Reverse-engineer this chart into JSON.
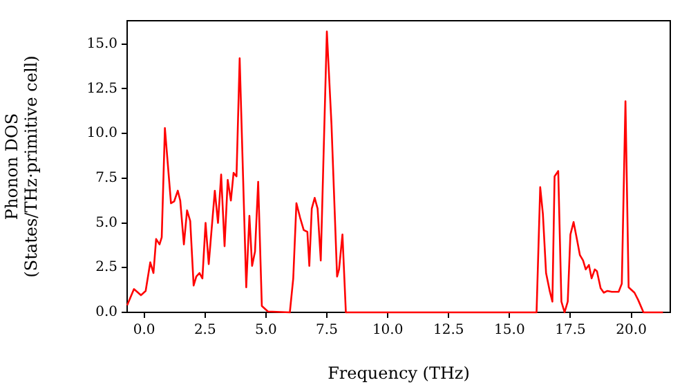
{
  "chart_data": {
    "type": "line",
    "xlabel": "Frequency (THz)",
    "ylabel": "Phonon DOS\n(States/THz·primitive cell)",
    "xlim": [
      -0.7,
      21.6
    ],
    "ylim": [
      0,
      16.3
    ],
    "xticks": [
      {
        "value": 0,
        "label": "0.0"
      },
      {
        "value": 2.5,
        "label": "2.5"
      },
      {
        "value": 5,
        "label": "5.0"
      },
      {
        "value": 7.5,
        "label": "7.5"
      },
      {
        "value": 10,
        "label": "10.0"
      },
      {
        "value": 12.5,
        "label": "12.5"
      },
      {
        "value": 15,
        "label": "15.0"
      },
      {
        "value": 17.5,
        "label": "17.5"
      },
      {
        "value": 20,
        "label": "20.0"
      }
    ],
    "yticks": [
      {
        "value": 0,
        "label": "0.0"
      },
      {
        "value": 2.5,
        "label": "2.5"
      },
      {
        "value": 5,
        "label": "5.0"
      },
      {
        "value": 7.5,
        "label": "7.5"
      },
      {
        "value": 10,
        "label": "10.0"
      },
      {
        "value": 12.5,
        "label": "12.5"
      },
      {
        "value": 15,
        "label": "15.0"
      }
    ],
    "grid": false,
    "legend": false,
    "marker": "none",
    "line_style": "solid",
    "x": [
      -0.7,
      -0.42,
      -0.13,
      0.06,
      0.25,
      0.38,
      0.49,
      0.63,
      0.72,
      0.85,
      1.1,
      1.23,
      1.38,
      1.48,
      1.63,
      1.76,
      1.89,
      2.03,
      2.14,
      2.27,
      2.39,
      2.52,
      2.65,
      2.9,
      3.03,
      3.16,
      3.3,
      3.43,
      3.56,
      3.67,
      3.79,
      3.92,
      4.19,
      4.32,
      4.43,
      4.55,
      4.68,
      4.83,
      5.08,
      5.98,
      6.12,
      6.25,
      6.4,
      6.55,
      6.7,
      6.78,
      6.88,
      7.0,
      7.12,
      7.25,
      7.5,
      7.69,
      7.92,
      8.0,
      8.14,
      8.28,
      16.11,
      16.26,
      16.37,
      16.5,
      16.65,
      16.76,
      16.85,
      17.0,
      17.13,
      17.26,
      17.39,
      17.5,
      17.63,
      17.78,
      17.89,
      18.02,
      18.13,
      18.26,
      18.37,
      18.5,
      18.59,
      18.74,
      18.87,
      19.02,
      19.2,
      19.48,
      19.61,
      19.76,
      19.89,
      20.13,
      20.28,
      20.5,
      21.3
    ],
    "series": [
      {
        "color": "#ff0000",
        "values": [
          0.4,
          1.3,
          0.96,
          1.2,
          2.8,
          2.2,
          4.1,
          3.8,
          4.2,
          10.3,
          6.1,
          6.2,
          6.8,
          6.25,
          3.8,
          5.7,
          5.1,
          1.5,
          2.0,
          2.2,
          1.9,
          5.0,
          2.7,
          6.8,
          5.0,
          7.7,
          3.7,
          7.4,
          6.25,
          7.8,
          7.6,
          14.2,
          1.4,
          5.4,
          2.6,
          3.4,
          7.3,
          0.36,
          0.05,
          0,
          1.9,
          6.1,
          5.3,
          4.6,
          4.5,
          2.6,
          5.8,
          6.4,
          5.8,
          2.9,
          15.7,
          10.5,
          2.0,
          2.4,
          4.35,
          0,
          0,
          7.0,
          5.5,
          2.2,
          1.2,
          0.6,
          7.6,
          7.9,
          0.6,
          0,
          0.6,
          4.35,
          5.05,
          4.0,
          3.2,
          2.9,
          2.4,
          2.65,
          1.9,
          2.4,
          2.3,
          1.35,
          1.1,
          1.2,
          1.15,
          1.15,
          1.6,
          11.8,
          1.4,
          1.1,
          0.7,
          0,
          0
        ]
      }
    ]
  }
}
